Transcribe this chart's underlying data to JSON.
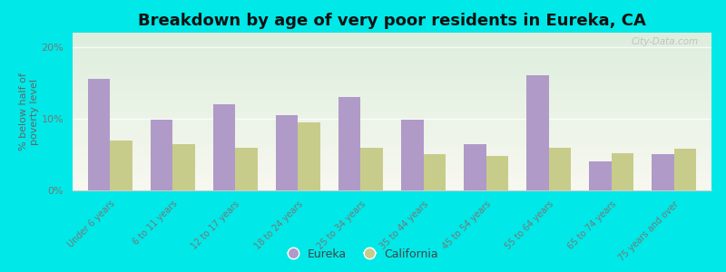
{
  "title": "Breakdown by age of very poor residents in Eureka, CA",
  "ylabel": "% below half of\npoverty level",
  "categories": [
    "Under 6 years",
    "6 to 11 years",
    "12 to 17 years",
    "18 to 24 years",
    "25 to 34 years",
    "35 to 44 years",
    "45 to 54 years",
    "55 to 64 years",
    "65 to 74 years",
    "75 years and over"
  ],
  "eureka": [
    15.5,
    9.8,
    12.0,
    10.5,
    13.0,
    9.8,
    6.5,
    16.0,
    4.0,
    5.0
  ],
  "california": [
    7.0,
    6.5,
    6.0,
    9.5,
    6.0,
    5.0,
    4.8,
    6.0,
    5.2,
    5.8
  ],
  "eureka_color": "#b09ac8",
  "california_color": "#c8cc8a",
  "bg_outer": "#00e8e8",
  "bg_plot_top": "#ddeedd",
  "bg_plot_bottom": "#f8f8f0",
  "ylim": [
    0,
    22
  ],
  "yticks": [
    0,
    10,
    20
  ],
  "ytick_labels": [
    "0%",
    "10%",
    "20%"
  ],
  "title_fontsize": 13,
  "bar_width": 0.35,
  "watermark": "City-Data.com"
}
